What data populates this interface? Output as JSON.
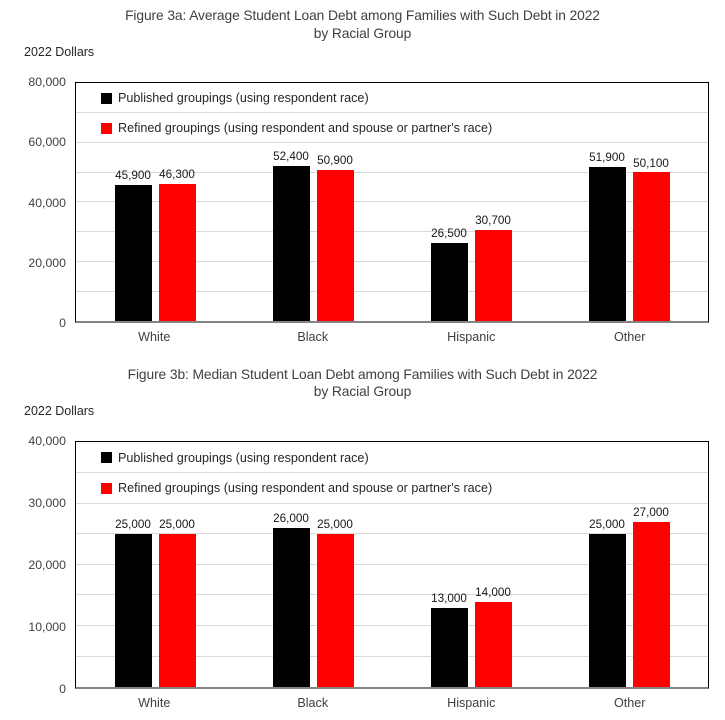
{
  "style": {
    "background": "#FFFFFF",
    "grid_color": "#D9D9D9",
    "plot_border_color": "#000000",
    "axis_line_color": "#848484",
    "axis_text_color": "#404040",
    "published_color": "#000000",
    "refined_color": "#FF0000"
  },
  "chart_data": [
    {
      "type": "bar",
      "title": "Figure 3a: Average Student Loan Debt among Families with Such Debt in 2022 by Racial Group",
      "title_line1": "Figure 3a: Average Student Loan Debt among Families with Such Debt in 2022",
      "title_line2": "by Racial Group",
      "ylabel": "2022 Dollars",
      "xlabel": "",
      "categories": [
        "White",
        "Black",
        "Hispanic",
        "Other"
      ],
      "series": [
        {
          "name": "Published groupings (using respondent race)",
          "color": "#000000",
          "values": [
            45900,
            52400,
            26500,
            51900
          ],
          "value_labels": [
            "45,900",
            "52,400",
            "26,500",
            "51,900"
          ]
        },
        {
          "name": "Refined groupings (using respondent and spouse or partner's race)",
          "color": "#FF0000",
          "values": [
            46300,
            50900,
            30700,
            50100
          ],
          "value_labels": [
            "46,300",
            "50,900",
            "30,700",
            "50,100"
          ]
        }
      ],
      "ylim": [
        0,
        80000
      ],
      "yticks": [
        {
          "value": 0,
          "label": "0"
        },
        {
          "value": 20000,
          "label": "20,000"
        },
        {
          "value": 40000,
          "label": "40,000"
        },
        {
          "value": 60000,
          "label": "60,000"
        },
        {
          "value": 80000,
          "label": "80,000"
        }
      ],
      "gridline_interval": 10000,
      "grid": true,
      "grid_color": "#D9D9D9",
      "legend_position": "top-left-inside"
    },
    {
      "type": "bar",
      "title": "Figure 3b: Median Student Loan Debt among Families with Such Debt in 2022 by Racial Group",
      "title_line1": "Figure 3b: Median Student Loan Debt among Families with Such Debt in 2022",
      "title_line2": "by Racial Group",
      "ylabel": "2022 Dollars",
      "xlabel": "",
      "categories": [
        "White",
        "Black",
        "Hispanic",
        "Other"
      ],
      "series": [
        {
          "name": "Published groupings (using respondent race)",
          "color": "#000000",
          "values": [
            25000,
            26000,
            13000,
            25000
          ],
          "value_labels": [
            "25,000",
            "26,000",
            "13,000",
            "25,000"
          ]
        },
        {
          "name": "Refined groupings (using respondent and spouse or partner's race)",
          "color": "#FF0000",
          "values": [
            25000,
            25000,
            14000,
            27000
          ],
          "value_labels": [
            "25,000",
            "25,000",
            "14,000",
            "27,000"
          ]
        }
      ],
      "ylim": [
        0,
        40000
      ],
      "yticks": [
        {
          "value": 0,
          "label": "0"
        },
        {
          "value": 10000,
          "label": "10,000"
        },
        {
          "value": 20000,
          "label": "20,000"
        },
        {
          "value": 30000,
          "label": "30,000"
        },
        {
          "value": 40000,
          "label": "40,000"
        }
      ],
      "gridline_interval": 5000,
      "grid": true,
      "grid_color": "#D9D9D9",
      "legend_position": "top-left-inside"
    }
  ]
}
